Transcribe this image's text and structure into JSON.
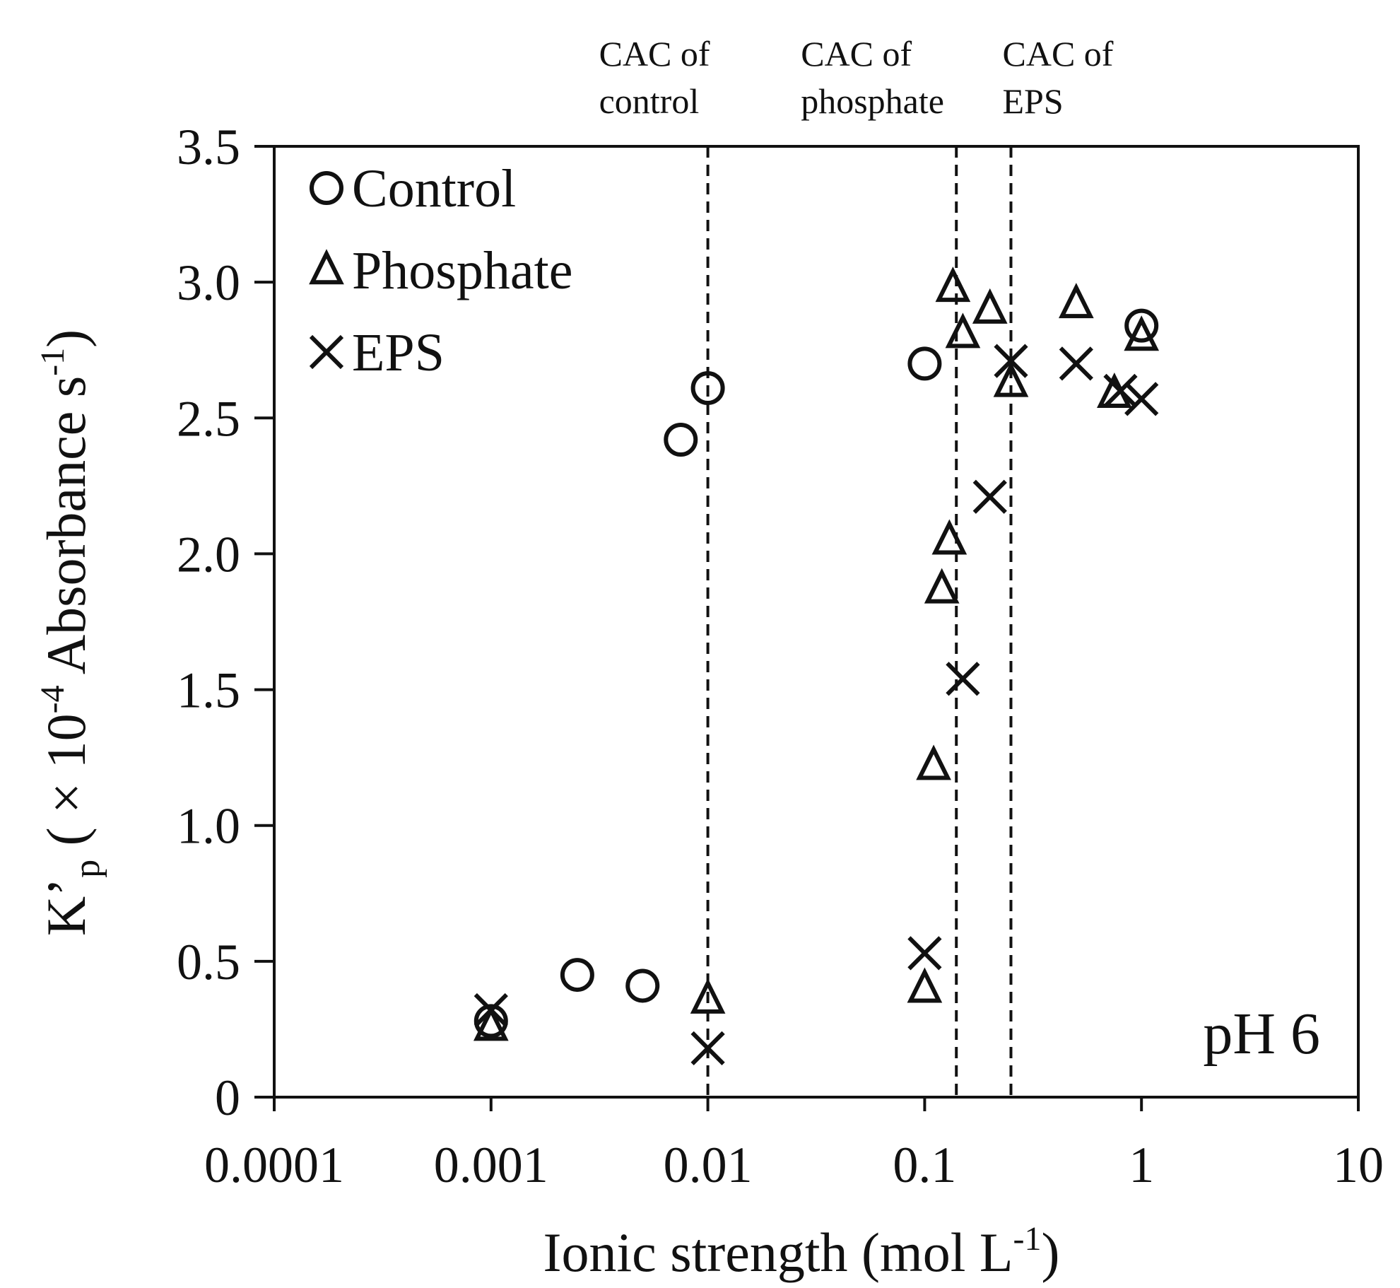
{
  "chart_data": {
    "type": "scatter",
    "x_scale": "log",
    "xlabel_main": "Ionic strength (mol L",
    "xlabel_sup": "-1",
    "xlabel_tail": ")",
    "ylabel": {
      "k": "K",
      "prime": "’",
      "sub": "p",
      "open": " ( × 10",
      "sup_exp": "-4",
      "mid": " Absorbance s",
      "sup_unit": "-1",
      "close": ")"
    },
    "xlim": [
      0.0001,
      10
    ],
    "ylim": [
      0,
      3.5
    ],
    "x_ticks": [
      {
        "value": 0.0001,
        "label": "0.0001"
      },
      {
        "value": 0.001,
        "label": "0.001"
      },
      {
        "value": 0.01,
        "label": "0.01"
      },
      {
        "value": 0.1,
        "label": "0.1"
      },
      {
        "value": 1,
        "label": "1"
      },
      {
        "value": 10,
        "label": "10"
      }
    ],
    "y_ticks": [
      {
        "value": 0,
        "label": "0"
      },
      {
        "value": 0.5,
        "label": "0.5"
      },
      {
        "value": 1.0,
        "label": "1.0"
      },
      {
        "value": 1.5,
        "label": "1.5"
      },
      {
        "value": 2.0,
        "label": "2.0"
      },
      {
        "value": 2.5,
        "label": "2.5"
      },
      {
        "value": 3.0,
        "label": "3.0"
      },
      {
        "value": 3.5,
        "label": "3.5"
      }
    ],
    "annotation": "pH 6",
    "legend_position": "top-left",
    "reference_lines": [
      {
        "x": 0.01,
        "line1": "CAC of",
        "line2": "control"
      },
      {
        "x": 0.14,
        "line1": "CAC of",
        "line2": "phosphate"
      },
      {
        "x": 0.25,
        "line1": "CAC of",
        "line2": "EPS"
      }
    ],
    "series": [
      {
        "name": "Control",
        "marker": "circle",
        "points": [
          [
            0.001,
            0.28
          ],
          [
            0.0025,
            0.45
          ],
          [
            0.005,
            0.41
          ],
          [
            0.0075,
            2.42
          ],
          [
            0.01,
            2.61
          ],
          [
            0.1,
            2.7
          ],
          [
            1.0,
            2.84
          ]
        ]
      },
      {
        "name": "Phosphate",
        "marker": "triangle",
        "points": [
          [
            0.001,
            0.26
          ],
          [
            0.01,
            0.36
          ],
          [
            0.1,
            0.4
          ],
          [
            0.11,
            1.22
          ],
          [
            0.12,
            1.87
          ],
          [
            0.13,
            2.05
          ],
          [
            0.135,
            2.98
          ],
          [
            0.15,
            2.81
          ],
          [
            0.2,
            2.9
          ],
          [
            0.25,
            2.63
          ],
          [
            0.5,
            2.92
          ],
          [
            0.75,
            2.59
          ],
          [
            1.0,
            2.8
          ]
        ]
      },
      {
        "name": "EPS",
        "marker": "cross",
        "points": [
          [
            0.001,
            0.32
          ],
          [
            0.01,
            0.18
          ],
          [
            0.1,
            0.53
          ],
          [
            0.15,
            1.54
          ],
          [
            0.2,
            2.21
          ],
          [
            0.25,
            2.71
          ],
          [
            0.5,
            2.7
          ],
          [
            0.8,
            2.6
          ],
          [
            1.0,
            2.57
          ]
        ]
      }
    ]
  }
}
